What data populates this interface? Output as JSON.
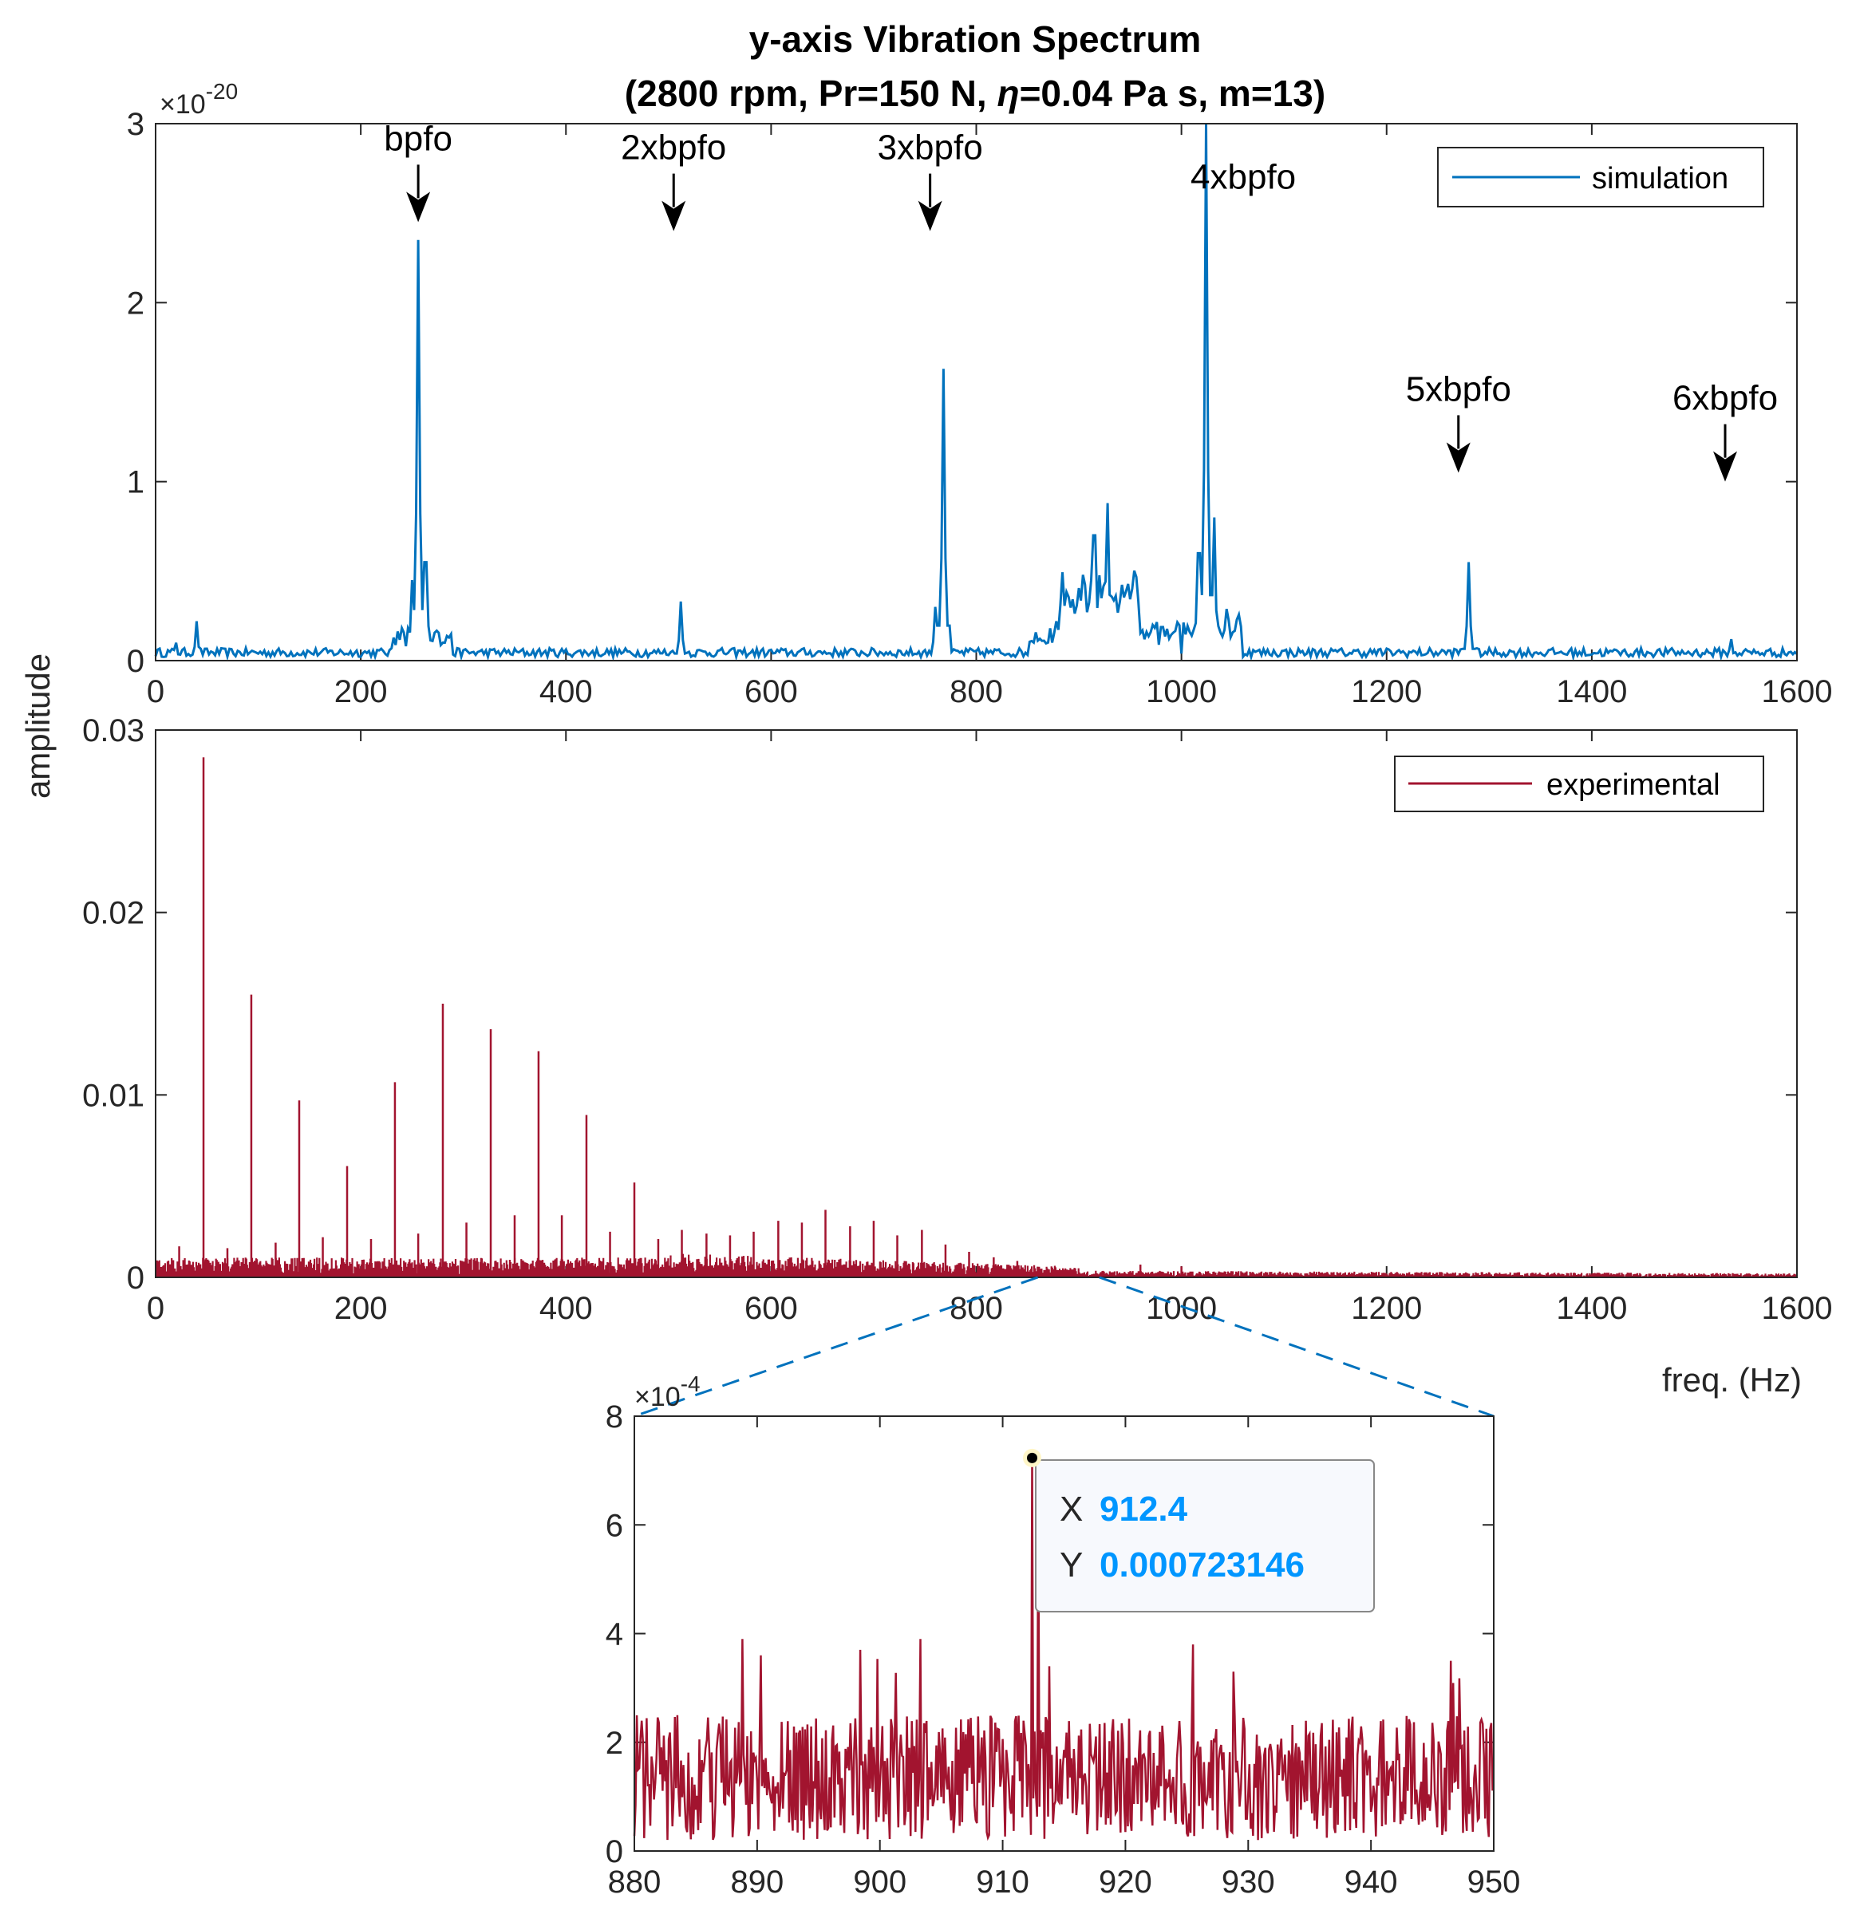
{
  "colors": {
    "simulation": "#0072BD",
    "experimental": "#A2142F",
    "axes": "#262626",
    "zoom_line": "#0072BD",
    "datatip_value": "#0096FF",
    "datatip_bg": "#F7F9FD",
    "datatip_border": "#888888"
  },
  "chart_data": [
    {
      "id": "simulation",
      "type": "line",
      "title_line1": "y-axis Vibration Spectrum",
      "title_line2_before": "(2800 rpm, Pr=150 N, ",
      "title_line2_symbol": "η",
      "title_line2_after": "=0.04 Pa s, m=13)",
      "ylabel": "amplitude",
      "exponent": "-20",
      "xlim": [
        0,
        1600
      ],
      "ylim": [
        0,
        3
      ],
      "xticks": [
        0,
        200,
        400,
        600,
        800,
        1000,
        1200,
        1400,
        1600
      ],
      "yticks": [
        0,
        1,
        2,
        3
      ],
      "legend": "simulation",
      "peaks": [
        [
          20,
          0.1
        ],
        [
          40,
          0.22
        ],
        [
          250,
          0.45
        ],
        [
          256,
          2.35
        ],
        [
          263,
          0.55
        ],
        [
          512,
          0.33
        ],
        [
          760,
          0.3
        ],
        [
          768,
          1.63
        ],
        [
          915,
          0.7
        ],
        [
          928,
          0.88
        ],
        [
          1017,
          0.6
        ],
        [
          1024,
          3.05
        ],
        [
          1032,
          0.8
        ],
        [
          1280,
          0.55
        ],
        [
          1536,
          0.12
        ]
      ],
      "annotations": [
        {
          "text": "bpfo",
          "x": 256,
          "y": 2.45
        },
        {
          "text": "2xbpfo",
          "x": 505,
          "y": 2.4
        },
        {
          "text": "3xbpfo",
          "x": 755,
          "y": 2.4
        },
        {
          "text": "4xbpfo",
          "x": 1040,
          "y": 2.6
        },
        {
          "text": "5xbpfo",
          "x": 1270,
          "y": 1.05
        },
        {
          "text": "6xbpfo",
          "x": 1530,
          "y": 1.0
        }
      ]
    },
    {
      "id": "experimental",
      "type": "line",
      "xlabel": "freq. (Hz)",
      "xlim": [
        0,
        1600
      ],
      "ylim": [
        0,
        0.03
      ],
      "xticks": [
        0,
        200,
        400,
        600,
        800,
        1000,
        1200,
        1400,
        1600
      ],
      "yticks": [
        0,
        0.01,
        0.02,
        0.03
      ],
      "ytick_labels": [
        "0",
        "0.01",
        "0.02",
        "0.03"
      ],
      "legend": "experimental",
      "spikes": [
        [
          46.7,
          0.0285
        ],
        [
          93.3,
          0.0155
        ],
        [
          140,
          0.0097
        ],
        [
          186.7,
          0.0061
        ],
        [
          233.3,
          0.0107
        ],
        [
          280,
          0.015
        ],
        [
          326.7,
          0.0136
        ],
        [
          373.3,
          0.0124
        ],
        [
          420,
          0.0089
        ],
        [
          466.7,
          0.0052
        ],
        [
          23,
          0.0017
        ],
        [
          70,
          0.0016
        ],
        [
          117,
          0.0019
        ],
        [
          163,
          0.0022
        ],
        [
          210,
          0.0021
        ],
        [
          256,
          0.0024
        ],
        [
          303,
          0.003
        ],
        [
          350,
          0.0034
        ],
        [
          396,
          0.0034
        ],
        [
          443,
          0.0025
        ],
        [
          490,
          0.0021
        ],
        [
          513,
          0.0026
        ],
        [
          537,
          0.0024
        ],
        [
          560,
          0.0023
        ],
        [
          583,
          0.0025
        ],
        [
          607,
          0.0031
        ],
        [
          630,
          0.003
        ],
        [
          653,
          0.0037
        ],
        [
          677,
          0.0028
        ],
        [
          700,
          0.0031
        ],
        [
          723,
          0.0023
        ],
        [
          747,
          0.0026
        ],
        [
          770,
          0.0018
        ],
        [
          793,
          0.0014
        ],
        [
          817,
          0.0011
        ],
        [
          840,
          0.0009
        ],
        [
          960,
          0.0007
        ],
        [
          1000,
          0.0006
        ]
      ]
    },
    {
      "id": "zoom",
      "type": "line",
      "exponent": "-4",
      "xlim": [
        880,
        950
      ],
      "ylim": [
        0,
        8
      ],
      "xticks": [
        880,
        890,
        900,
        910,
        920,
        930,
        940,
        950
      ],
      "yticks": [
        0,
        2,
        4,
        6,
        8
      ],
      "zoom_range_hz": [
        860,
        920
      ],
      "spikes": [
        [
          888.8,
          3.9
        ],
        [
          890.3,
          3.6
        ],
        [
          898.4,
          3.7
        ],
        [
          903.3,
          3.9
        ],
        [
          912.4,
          7.23
        ],
        [
          912.9,
          6.5
        ],
        [
          913.8,
          3.4
        ],
        [
          925.5,
          3.8
        ],
        [
          928.8,
          3.3
        ],
        [
          946.5,
          3.5
        ]
      ],
      "datatip": {
        "x_label": "X",
        "x_value": "912.4",
        "y_label": "Y",
        "y_value": "0.000723146",
        "x": 912.4,
        "y": 7.23146
      }
    }
  ]
}
